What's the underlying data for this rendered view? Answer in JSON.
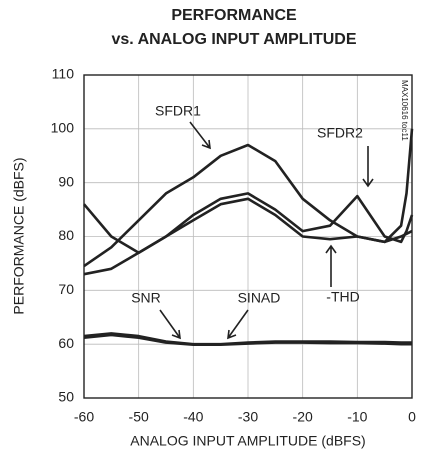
{
  "chart_data": {
    "type": "line",
    "title": "PERFORMANCE",
    "subtitle": "vs. ANALOG INPUT AMPLITUDE",
    "xlabel": "ANALOG INPUT AMPLITUDE (dBFS)",
    "ylabel": "PERFORMANCE (dBFS)",
    "note": "MAX10616 toc11",
    "xlim": [
      -60,
      0
    ],
    "ylim": [
      50,
      110
    ],
    "xticks": [
      -60,
      -50,
      -40,
      -30,
      -20,
      -10,
      0
    ],
    "yticks": [
      50,
      60,
      70,
      80,
      90,
      100,
      110
    ],
    "grid": true,
    "x": [
      -60,
      -55,
      -50,
      -45,
      -40,
      -35,
      -30,
      -25,
      -20,
      -15,
      -10,
      -5,
      -2,
      -1,
      0
    ],
    "series": [
      {
        "name": "SFDR1",
        "color": "#222222",
        "values": [
          74.5,
          78,
          83,
          88,
          91,
          95,
          97,
          94,
          87,
          83,
          80,
          79,
          82,
          88,
          100
        ]
      },
      {
        "name": "SFDR2",
        "color": "#222222",
        "values": [
          86,
          80,
          77,
          80,
          84,
          87,
          88,
          85,
          81,
          82,
          87.5,
          80,
          79,
          81,
          84
        ]
      },
      {
        "name": "-THD",
        "color": "#222222",
        "values": [
          73,
          74,
          77,
          80,
          83,
          86,
          87,
          84,
          80,
          79.5,
          80,
          79,
          80,
          80.5,
          81
        ]
      },
      {
        "name": "SNR",
        "color": "#222222",
        "values": [
          61.5,
          62,
          61.5,
          60.5,
          60,
          60,
          60.3,
          60.5,
          60.5,
          60.5,
          60.4,
          60.4,
          60.3,
          60.3,
          60.3
        ]
      },
      {
        "name": "SINAD",
        "color": "#222222",
        "values": [
          61.2,
          61.7,
          61.2,
          60.3,
          59.9,
          59.9,
          60.1,
          60.3,
          60.3,
          60.2,
          60.2,
          60.1,
          60,
          60,
          60
        ]
      }
    ]
  }
}
